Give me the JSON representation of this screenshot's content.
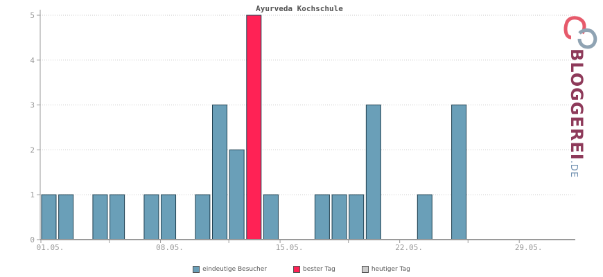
{
  "chart_data": {
    "type": "bar",
    "title": "Ayurveda Kochschule",
    "x": [
      "01.05.",
      "02.05.",
      "03.05.",
      "04.05.",
      "05.05.",
      "06.05.",
      "07.05.",
      "08.05.",
      "09.05.",
      "10.05.",
      "11.05.",
      "12.05.",
      "13.05.",
      "14.05.",
      "15.05.",
      "16.05.",
      "17.05.",
      "18.05.",
      "19.05.",
      "20.05.",
      "21.05.",
      "22.05.",
      "23.05.",
      "24.05.",
      "25.05.",
      "26.05.",
      "27.05.",
      "28.05.",
      "29.05.",
      "30.05.",
      "31.05."
    ],
    "xticks": [
      "01.05.",
      "08.05.",
      "15.05.",
      "22.05.",
      "29.05."
    ],
    "series": [
      {
        "name": "eindeutige Besucher",
        "color": "#6a9fb8",
        "values": [
          1,
          1,
          0,
          1,
          1,
          0,
          1,
          1,
          0,
          1,
          3,
          2,
          5,
          1,
          0,
          0,
          1,
          1,
          1,
          3,
          0,
          0,
          1,
          0,
          3,
          0,
          0,
          0,
          0,
          0,
          0
        ]
      }
    ],
    "best_day_index": 12,
    "ylim": [
      0,
      5
    ],
    "yticks": [
      0,
      1,
      2,
      3,
      4,
      5
    ],
    "grid": true,
    "legend": [
      {
        "label": "eindeutige Besucher",
        "color": "#6a9fb8"
      },
      {
        "label": "bester Tag",
        "color": "#ff2255"
      },
      {
        "label": "heutiger Tag",
        "color": "#cccccc"
      }
    ],
    "legend_position": "bottom"
  },
  "brand": {
    "name": "BLOGGEREI",
    "suffix": ".DE"
  }
}
